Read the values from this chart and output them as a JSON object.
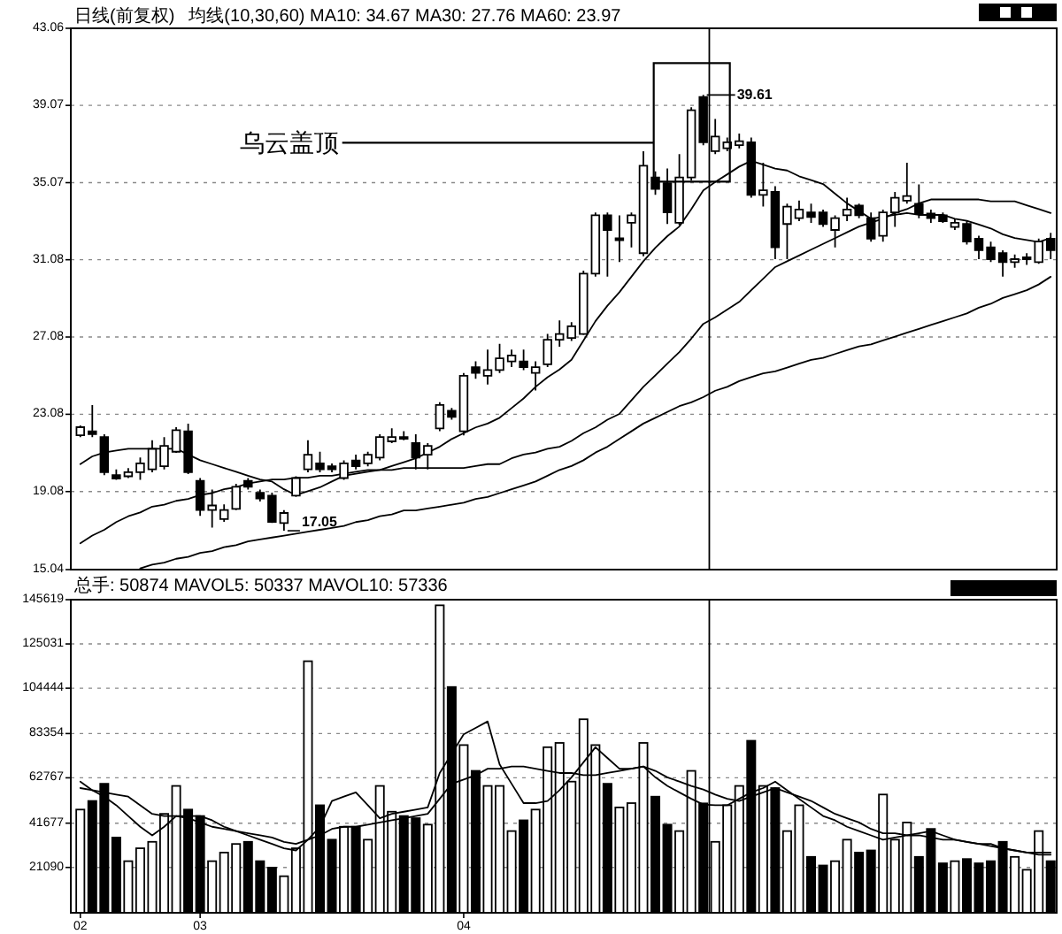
{
  "chart_data": [
    {
      "type": "candlestick",
      "title": "日线(前复权)",
      "subtitle": "均线(10,30,60) MA10: 34.67 MA30: 27.76 MA60: 23.97",
      "color": "#000000",
      "categories": [
        null,
        null,
        null,
        null,
        null,
        null,
        null,
        null,
        null,
        null,
        null,
        null,
        null,
        null,
        null,
        null,
        null,
        null,
        null,
        null,
        null,
        null,
        null,
        null,
        null,
        null,
        null,
        null,
        null,
        null,
        null,
        null,
        null,
        null,
        null,
        null,
        null,
        null,
        null,
        null,
        null,
        null,
        null,
        null,
        null,
        null,
        null,
        null,
        null,
        null,
        null,
        null,
        null,
        null,
        null,
        null,
        null,
        null,
        null,
        null,
        null,
        null,
        null,
        null,
        null,
        null,
        null,
        null,
        null,
        null,
        null,
        null,
        null,
        null,
        null,
        null,
        null,
        null,
        null,
        null,
        null,
        null
      ],
      "ohlc": [
        [
          21.99,
          22.5,
          21.9,
          22.41
        ],
        [
          22.2,
          23.56,
          21.9,
          22.05
        ],
        [
          21.9,
          22.05,
          19.93,
          20.08
        ],
        [
          19.93,
          20.23,
          19.69,
          19.75
        ],
        [
          19.87,
          20.29,
          19.78,
          20.08
        ],
        [
          20.08,
          20.84,
          19.69,
          20.54
        ],
        [
          20.23,
          21.74,
          20.08,
          21.29
        ],
        [
          20.39,
          21.9,
          20.23,
          21.44
        ],
        [
          21.14,
          22.41,
          21.08,
          22.26
        ],
        [
          22.2,
          22.59,
          19.99,
          20.08
        ],
        [
          19.63,
          19.78,
          17.82,
          18.12
        ],
        [
          18.12,
          19.18,
          17.21,
          18.36
        ],
        [
          17.66,
          18.42,
          17.51,
          18.12
        ],
        [
          18.18,
          19.48,
          18.12,
          19.33
        ],
        [
          19.63,
          19.78,
          19.18,
          19.33
        ],
        [
          19.02,
          19.18,
          18.57,
          18.72
        ],
        [
          18.87,
          19.02,
          17.45,
          17.51
        ],
        [
          17.45,
          18.12,
          17.05,
          17.97
        ],
        [
          18.87,
          19.87,
          18.81,
          19.78
        ],
        [
          20.23,
          21.74,
          20.08,
          20.99
        ],
        [
          20.54,
          21.14,
          20.08,
          20.23
        ],
        [
          20.39,
          20.54,
          20.08,
          20.23
        ],
        [
          19.78,
          20.69,
          19.69,
          20.54
        ],
        [
          20.69,
          20.99,
          20.23,
          20.39
        ],
        [
          20.54,
          21.14,
          20.39,
          20.99
        ],
        [
          20.84,
          22.05,
          20.69,
          21.9
        ],
        [
          21.68,
          22.35,
          21.59,
          21.9
        ],
        [
          21.9,
          22.2,
          21.74,
          21.81
        ],
        [
          21.59,
          22.05,
          20.23,
          20.84
        ],
        [
          20.99,
          21.59,
          20.23,
          21.44
        ],
        [
          22.35,
          23.71,
          22.2,
          23.56
        ],
        [
          23.26,
          23.41,
          22.8,
          22.95
        ],
        [
          22.2,
          25.22,
          21.99,
          25.07
        ],
        [
          25.52,
          25.82,
          24.92,
          25.22
        ],
        [
          25.07,
          26.43,
          24.62,
          25.37
        ],
        [
          25.37,
          26.73,
          25.22,
          25.98
        ],
        [
          25.82,
          26.43,
          25.52,
          26.13
        ],
        [
          25.82,
          26.43,
          25.37,
          25.52
        ],
        [
          25.22,
          25.82,
          24.31,
          25.52
        ],
        [
          25.67,
          27.24,
          25.52,
          26.94
        ],
        [
          26.94,
          27.94,
          26.58,
          27.24
        ],
        [
          27.03,
          27.85,
          26.88,
          27.64
        ],
        [
          27.24,
          30.51,
          27.18,
          30.36
        ],
        [
          30.36,
          33.53,
          30.21,
          33.38
        ],
        [
          33.38,
          33.53,
          30.21,
          32.62
        ],
        [
          32.11,
          33.38,
          30.96,
          32.17
        ],
        [
          32.99,
          33.53,
          31.72,
          33.38
        ],
        [
          31.42,
          36.7,
          31.26,
          35.95
        ],
        [
          35.34,
          35.65,
          34.44,
          34.74
        ],
        [
          35.04,
          35.8,
          32.93,
          33.53
        ],
        [
          32.99,
          36.55,
          32.87,
          35.34
        ],
        [
          35.34,
          38.97,
          35.19,
          38.82
        ],
        [
          39.5,
          39.61,
          37.01,
          37.16
        ],
        [
          36.7,
          38.37,
          36.55,
          37.46
        ],
        [
          36.85,
          37.4,
          36.7,
          37.16
        ],
        [
          37.01,
          37.61,
          36.85,
          37.22
        ],
        [
          37.16,
          37.4,
          34.29,
          34.44
        ],
        [
          34.44,
          36.1,
          33.83,
          34.68
        ],
        [
          34.59,
          34.89,
          31.11,
          31.72
        ],
        [
          32.93,
          33.98,
          31.11,
          33.83
        ],
        [
          33.23,
          34.14,
          33.08,
          33.68
        ],
        [
          33.53,
          33.98,
          32.99,
          33.29
        ],
        [
          33.53,
          33.68,
          32.78,
          32.93
        ],
        [
          32.62,
          33.38,
          31.72,
          33.23
        ],
        [
          33.38,
          34.29,
          33.08,
          33.68
        ],
        [
          33.89,
          33.98,
          33.23,
          33.38
        ],
        [
          33.23,
          33.53,
          32.02,
          32.17
        ],
        [
          32.32,
          33.68,
          32.02,
          33.53
        ],
        [
          33.53,
          34.59,
          32.78,
          34.29
        ],
        [
          34.14,
          36.1,
          33.98,
          34.38
        ],
        [
          33.98,
          34.98,
          33.23,
          33.47
        ],
        [
          33.47,
          33.68,
          32.99,
          33.23
        ],
        [
          33.38,
          33.53,
          32.99,
          33.08
        ],
        [
          32.78,
          33.17,
          32.62,
          32.99
        ],
        [
          32.93,
          33.08,
          31.87,
          32.02
        ],
        [
          32.17,
          32.32,
          31.11,
          31.57
        ],
        [
          31.72,
          32.02,
          30.96,
          31.11
        ],
        [
          31.42,
          31.57,
          30.21,
          30.96
        ],
        [
          30.96,
          31.35,
          30.66,
          31.11
        ],
        [
          31.11,
          31.42,
          30.81,
          31.2
        ],
        [
          30.96,
          32.17,
          30.87,
          32.02
        ],
        [
          32.17,
          32.47,
          31.11,
          31.57
        ]
      ],
      "series": [
        {
          "type": "line",
          "color": "#000000",
          "values": [
            20.5,
            20.9,
            21.1,
            21.2,
            21.3,
            21.3,
            21.3,
            21.3,
            21.3,
            21.0,
            20.7,
            20.5,
            20.3,
            20.1,
            19.9,
            19.7,
            19.6,
            19.2,
            18.9,
            19.1,
            19.3,
            19.6,
            19.9,
            20.0,
            20.1,
            20.2,
            20.4,
            20.6,
            20.8,
            21.1,
            21.4,
            21.8,
            22.1,
            22.4,
            22.6,
            22.9,
            23.4,
            23.9,
            24.5,
            25.0,
            25.4,
            25.9,
            26.9,
            27.9,
            28.7,
            29.4,
            30.2,
            31.0,
            31.7,
            32.3,
            32.8,
            33.7,
            34.67,
            35.1,
            35.5,
            35.9,
            36.2,
            36.0,
            35.8,
            35.7,
            35.4,
            35.2,
            35.0,
            34.5,
            34.0,
            33.6,
            33.2,
            33.3,
            33.4,
            33.5,
            33.4,
            33.4,
            33.4,
            33.2,
            33.1,
            32.9,
            32.7,
            32.4,
            32.2,
            32.1,
            32.0,
            32.2
          ]
        },
        {
          "type": "line",
          "color": "#000000",
          "values": [
            16.4,
            16.8,
            17.1,
            17.5,
            17.8,
            18.0,
            18.3,
            18.4,
            18.6,
            18.7,
            18.9,
            19.0,
            19.2,
            19.3,
            19.5,
            19.6,
            19.7,
            19.7,
            19.8,
            19.8,
            19.9,
            19.9,
            20.0,
            20.1,
            20.2,
            20.2,
            20.2,
            20.3,
            20.3,
            20.3,
            20.3,
            20.3,
            20.3,
            20.4,
            20.5,
            20.5,
            20.8,
            21.0,
            21.1,
            21.3,
            21.4,
            21.7,
            22.1,
            22.4,
            22.8,
            23.1,
            23.8,
            24.5,
            25.1,
            25.7,
            26.3,
            27.0,
            27.76,
            28.1,
            28.5,
            28.9,
            29.5,
            30.1,
            30.7,
            31.0,
            31.3,
            31.6,
            31.9,
            32.2,
            32.5,
            32.8,
            33.0,
            33.2,
            33.5,
            33.7,
            34.0,
            34.2,
            34.2,
            34.2,
            34.2,
            34.2,
            34.1,
            34.1,
            34.1,
            33.9,
            33.7,
            33.5
          ]
        },
        {
          "type": "line",
          "color": "#000000",
          "values": [
            null,
            null,
            null,
            null,
            null,
            15.1,
            15.3,
            15.4,
            15.6,
            15.7,
            15.9,
            16.0,
            16.2,
            16.3,
            16.5,
            16.6,
            16.7,
            16.8,
            16.9,
            17.0,
            17.1,
            17.2,
            17.3,
            17.5,
            17.6,
            17.8,
            17.9,
            18.1,
            18.1,
            18.2,
            18.3,
            18.4,
            18.5,
            18.7,
            18.8,
            19.0,
            19.2,
            19.4,
            19.6,
            19.9,
            20.2,
            20.4,
            20.7,
            21.1,
            21.4,
            21.8,
            22.2,
            22.6,
            22.9,
            23.2,
            23.5,
            23.7,
            23.97,
            24.3,
            24.5,
            24.8,
            25.0,
            25.2,
            25.3,
            25.5,
            25.7,
            25.9,
            26.0,
            26.2,
            26.4,
            26.6,
            26.7,
            26.9,
            27.1,
            27.3,
            27.5,
            27.7,
            27.9,
            28.1,
            28.3,
            28.6,
            28.8,
            29.1,
            29.3,
            29.5,
            29.8,
            30.2
          ]
        }
      ],
      "ylim": [
        15.04,
        43.06
      ],
      "yticks": [
        15.04,
        19.08,
        23.08,
        27.08,
        31.08,
        35.07,
        39.07,
        43.06
      ],
      "grid": "y",
      "annotations": [
        "乌云盖顶",
        "39.61",
        "17.05"
      ]
    },
    {
      "type": "bar",
      "title": "总手: 50874 MAVOL5: 50337 MAVOL10: 57336",
      "categories": [
        "02",
        null,
        null,
        null,
        null,
        null,
        null,
        null,
        null,
        null,
        "03",
        null,
        null,
        null,
        null,
        null,
        null,
        null,
        null,
        null,
        null,
        null,
        null,
        null,
        null,
        null,
        null,
        null,
        null,
        null,
        null,
        null,
        "04",
        null,
        null,
        null,
        null,
        null,
        null,
        null,
        null,
        null,
        null,
        null,
        null,
        null,
        null,
        null,
        null,
        null,
        null,
        null,
        null,
        null,
        null,
        null,
        null,
        null,
        null,
        null,
        null,
        null,
        null,
        null,
        null,
        null,
        null,
        null,
        null,
        null,
        null,
        null,
        null,
        null,
        null,
        null,
        null,
        null,
        null,
        null,
        null,
        null
      ],
      "series": [
        {
          "type": "bar",
          "color": "#000000",
          "values": [
            48000,
            52000,
            60000,
            35000,
            24000,
            30000,
            33000,
            46000,
            59000,
            48000,
            45000,
            24000,
            28000,
            32000,
            33000,
            24000,
            21000,
            17000,
            30000,
            117000,
            50000,
            34000,
            40000,
            40000,
            34000,
            59000,
            47000,
            45000,
            44000,
            41000,
            143000,
            105000,
            78000,
            66000,
            59000,
            59000,
            38000,
            43000,
            48000,
            77000,
            79000,
            61000,
            90000,
            78000,
            60000,
            49000,
            51000,
            79000,
            54000,
            41000,
            38000,
            66000,
            50874,
            33000,
            50000,
            59000,
            80000,
            59000,
            58000,
            38000,
            50000,
            26000,
            22000,
            24000,
            34000,
            28000,
            29000,
            55000,
            34000,
            42000,
            26000,
            39000,
            23000,
            24000,
            25000,
            23000,
            24000,
            33000,
            26000,
            20000,
            38000,
            24000
          ],
          "colors": [
            "#ffffff",
            "#000000",
            "#000000",
            "#000000",
            "#ffffff",
            "#ffffff",
            "#ffffff",
            "#ffffff",
            "#ffffff",
            "#000000",
            "#000000",
            "#ffffff",
            "#ffffff",
            "#ffffff",
            "#000000",
            "#000000",
            "#000000",
            "#ffffff",
            "#ffffff",
            "#ffffff",
            "#000000",
            "#000000",
            "#ffffff",
            "#000000",
            "#ffffff",
            "#ffffff",
            "#ffffff",
            "#000000",
            "#000000",
            "#ffffff",
            "#ffffff",
            "#000000",
            "#ffffff",
            "#000000",
            "#ffffff",
            "#ffffff",
            "#ffffff",
            "#000000",
            "#ffffff",
            "#ffffff",
            "#ffffff",
            "#ffffff",
            "#ffffff",
            "#ffffff",
            "#000000",
            "#ffffff",
            "#ffffff",
            "#ffffff",
            "#000000",
            "#000000",
            "#ffffff",
            "#ffffff",
            "#000000",
            "#ffffff",
            "#ffffff",
            "#ffffff",
            "#000000",
            "#ffffff",
            "#000000",
            "#ffffff",
            "#ffffff",
            "#000000",
            "#000000",
            "#ffffff",
            "#ffffff",
            "#000000",
            "#000000",
            "#ffffff",
            "#ffffff",
            "#ffffff",
            "#000000",
            "#000000",
            "#000000",
            "#ffffff",
            "#000000",
            "#000000",
            "#000000",
            "#000000",
            "#ffffff",
            "#ffffff",
            "#ffffff",
            "#000000"
          ]
        },
        {
          "type": "line",
          "color": "#000000",
          "values": [
            61000,
            57000,
            54000,
            50000,
            45000,
            40000,
            36000,
            40000,
            45000,
            45000,
            45000,
            43000,
            40000,
            38000,
            36000,
            34000,
            32000,
            30000,
            29000,
            34000,
            40000,
            52000,
            54000,
            56000,
            50000,
            44000,
            46000,
            47000,
            48000,
            49000,
            65000,
            74000,
            83000,
            86000,
            89000,
            69000,
            60000,
            51000,
            51000,
            52000,
            57000,
            63000,
            70000,
            77000,
            72000,
            67000,
            67000,
            68000,
            63000,
            59000,
            56000,
            53000,
            50337,
            50000,
            50000,
            53000,
            56000,
            58000,
            61000,
            57000,
            53000,
            49000,
            45000,
            43000,
            40000,
            38000,
            36000,
            34000,
            35000,
            36000,
            37000,
            38000,
            36000,
            34000,
            33000,
            32000,
            32000,
            30000,
            29000,
            28000,
            27000,
            27000
          ]
        },
        {
          "type": "line",
          "color": "#000000",
          "values": [
            58000,
            57000,
            56000,
            55000,
            54000,
            50000,
            46000,
            45000,
            45000,
            44000,
            42000,
            40000,
            39000,
            38000,
            37000,
            36000,
            35000,
            33000,
            32000,
            34000,
            36000,
            39000,
            40000,
            40000,
            41000,
            42000,
            43000,
            44000,
            45000,
            46000,
            53000,
            60000,
            62000,
            64000,
            67000,
            67000,
            68000,
            68000,
            67000,
            66000,
            65000,
            65000,
            64000,
            64000,
            65000,
            66000,
            67000,
            68000,
            66000,
            63000,
            61000,
            59000,
            57336,
            55000,
            53000,
            52000,
            54000,
            56000,
            58000,
            56000,
            54000,
            52000,
            49000,
            46000,
            44000,
            42000,
            39000,
            37000,
            37000,
            36000,
            36000,
            35000,
            34000,
            34000,
            33000,
            32000,
            31000,
            30000,
            29000,
            28000,
            28000,
            28000
          ]
        }
      ],
      "ylim": [
        0,
        145619
      ],
      "yticks": [
        21090,
        41677,
        62767,
        83354,
        104444,
        125031,
        145619
      ],
      "grid": "y"
    }
  ]
}
